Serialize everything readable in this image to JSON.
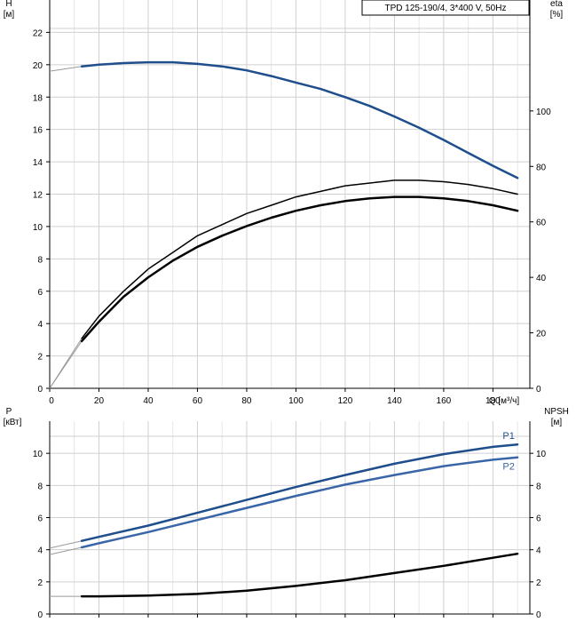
{
  "chart_data": [
    {
      "type": "line",
      "title": "TPD 125-190/4, 3*400 V, 50Hz",
      "xlabel": "Q [м³/ч]",
      "xlim": [
        0,
        195
      ],
      "x_ticks": [
        0,
        20,
        40,
        60,
        80,
        100,
        120,
        140,
        160,
        180
      ],
      "ylabel": "H [м]",
      "ylim": [
        0,
        24
      ],
      "y_ticks": [
        0,
        2,
        4,
        6,
        8,
        10,
        12,
        14,
        16,
        18,
        20,
        22
      ],
      "ylabel_right": "eta [%]",
      "ylim_right": [
        0,
        140
      ],
      "y_ticks_right": [
        0,
        20,
        40,
        60,
        80,
        100
      ],
      "grid": true,
      "series": [
        {
          "name": "",
          "axis": "left",
          "color": "#1f4e8c",
          "x": [
            0,
            13,
            20,
            30,
            40,
            50,
            60,
            70,
            80,
            90,
            100,
            110,
            120,
            130,
            140,
            150,
            160,
            170,
            180,
            190
          ],
          "y": [
            19.6,
            19.9,
            20.0,
            20.1,
            20.15,
            20.15,
            20.05,
            19.9,
            19.65,
            19.3,
            18.9,
            18.5,
            18.0,
            17.45,
            16.8,
            16.1,
            15.35,
            14.55,
            13.75,
            13.0
          ]
        },
        {
          "name": "",
          "axis": "right",
          "color": "#000000",
          "x": [
            0,
            13,
            20,
            30,
            40,
            50,
            60,
            70,
            80,
            90,
            100,
            110,
            120,
            130,
            140,
            150,
            160,
            170,
            180,
            190
          ],
          "y": [
            0,
            17,
            24,
            33,
            40,
            46,
            51,
            55,
            58.5,
            61.5,
            64,
            66,
            67.5,
            68.5,
            69,
            69,
            68.5,
            67.5,
            66,
            64
          ]
        },
        {
          "name": "",
          "axis": "right",
          "color": "#000000",
          "x": [
            0,
            13,
            20,
            30,
            40,
            50,
            60,
            70,
            80,
            90,
            100,
            110,
            120,
            130,
            140,
            150,
            160,
            170,
            180,
            190
          ],
          "y": [
            0,
            18,
            26,
            35,
            43,
            49,
            55,
            59,
            63,
            66,
            69,
            71,
            73,
            74,
            75,
            75,
            74.5,
            73.5,
            72,
            70
          ]
        }
      ]
    },
    {
      "type": "line",
      "xlim": [
        0,
        195
      ],
      "ylabel": "P [кВт]",
      "ylim": [
        0,
        12
      ],
      "y_ticks": [
        0,
        2,
        4,
        6,
        8,
        10
      ],
      "ylabel_right": "NPSH [м]",
      "ylim_right": [
        0,
        12
      ],
      "y_ticks_right": [
        0,
        2,
        4,
        6,
        8,
        10
      ],
      "grid": true,
      "series": [
        {
          "name": "P1",
          "axis": "left",
          "color": "#1f4e8c",
          "x": [
            0,
            13,
            20,
            40,
            60,
            80,
            100,
            120,
            140,
            160,
            180,
            190
          ],
          "y": [
            4.1,
            4.55,
            4.8,
            5.5,
            6.3,
            7.1,
            7.9,
            8.65,
            9.35,
            9.95,
            10.4,
            10.55
          ]
        },
        {
          "name": "P2",
          "axis": "left",
          "color": "#3a66a8",
          "x": [
            0,
            13,
            20,
            40,
            60,
            80,
            100,
            120,
            140,
            160,
            180,
            190
          ],
          "y": [
            3.7,
            4.15,
            4.4,
            5.1,
            5.85,
            6.6,
            7.35,
            8.05,
            8.65,
            9.2,
            9.6,
            9.75
          ]
        },
        {
          "name": "",
          "axis": "right",
          "color": "#000000",
          "x": [
            0,
            13,
            20,
            40,
            60,
            80,
            100,
            120,
            140,
            160,
            180,
            190
          ],
          "y": [
            1.1,
            1.1,
            1.1,
            1.15,
            1.25,
            1.45,
            1.75,
            2.1,
            2.55,
            3.0,
            3.5,
            3.75
          ]
        }
      ]
    }
  ]
}
